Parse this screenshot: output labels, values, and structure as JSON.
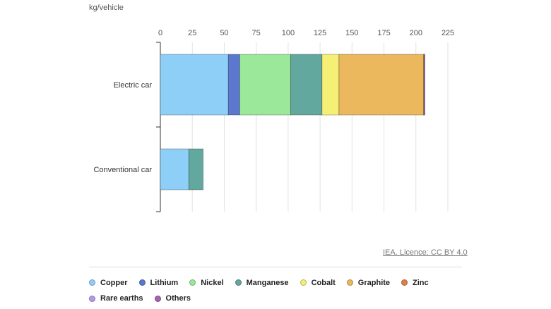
{
  "unit_label": "kg/vehicle",
  "source_label": "IEA. Licence: CC BY 4.0",
  "legend": [
    {
      "name": "Copper",
      "color": "#8ecff8"
    },
    {
      "name": "Lithium",
      "color": "#5b77cf"
    },
    {
      "name": "Nickel",
      "color": "#9be89a"
    },
    {
      "name": "Manganese",
      "color": "#62a89f"
    },
    {
      "name": "Cobalt",
      "color": "#f6ef76"
    },
    {
      "name": "Graphite",
      "color": "#ebb85e"
    },
    {
      "name": "Zinc",
      "color": "#e07d4b"
    },
    {
      "name": "Rare earths",
      "color": "#b698e8"
    },
    {
      "name": "Others",
      "color": "#a661b0"
    }
  ],
  "chart_data": {
    "type": "bar",
    "orientation": "horizontal",
    "stacked": true,
    "categories": [
      "Electric car",
      "Conventional car"
    ],
    "series": [
      {
        "name": "Copper",
        "values": [
          53.2,
          22.3
        ]
      },
      {
        "name": "Lithium",
        "values": [
          8.9,
          0
        ]
      },
      {
        "name": "Nickel",
        "values": [
          39.9,
          0
        ]
      },
      {
        "name": "Manganese",
        "values": [
          24.5,
          11.2
        ]
      },
      {
        "name": "Cobalt",
        "values": [
          13.3,
          0
        ]
      },
      {
        "name": "Graphite",
        "values": [
          66.3,
          0
        ]
      },
      {
        "name": "Zinc",
        "values": [
          0.1,
          0
        ]
      },
      {
        "name": "Rare earths",
        "values": [
          0.5,
          0
        ]
      },
      {
        "name": "Others",
        "values": [
          0.3,
          0
        ]
      }
    ],
    "xlim": [
      0,
      225
    ],
    "xticks": [
      0,
      25,
      50,
      75,
      100,
      125,
      150,
      175,
      200,
      225
    ],
    "xlabel": "kg/vehicle",
    "ylabel": "",
    "grid": true,
    "legend_position": "bottom"
  }
}
